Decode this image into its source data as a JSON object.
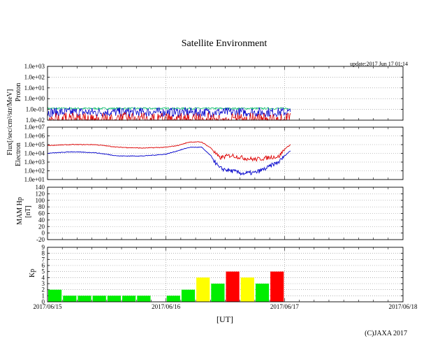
{
  "title": "Satellite Environment",
  "update": "update:2017 Jun 17 01:14",
  "copyright": "(C)JAXA 2017",
  "xaxis": {
    "label": "[UT]",
    "ticks": [
      "2017/06/15",
      "2017/06/16",
      "2017/06/17",
      "2017/06/18"
    ]
  },
  "ylabels": {
    "flux": "Flux[/sec/cm²/str/MeV]",
    "proton": "Proton",
    "electron": "Electron",
    "mam": "MAM Hp",
    "mam_unit": "[nT]",
    "kp": "Kp"
  },
  "colors": {
    "red": "#dd0000",
    "blue": "#0000cc",
    "green": "#00bb66",
    "kp_green": "#00ee00",
    "kp_yellow": "#ffff00",
    "kp_red": "#ff0000",
    "grid": "#888888"
  },
  "chart_data": [
    {
      "type": "line",
      "panel": "proton",
      "scale": "log",
      "ylim": [
        0.01,
        1000
      ],
      "yticks": [
        "1.0e-02",
        "1.0e-01",
        "1.0e+00",
        "1.0e+01",
        "1.0e+02",
        "1.0e+03"
      ],
      "xlim_days": [
        0,
        3
      ],
      "data_end_day": 2.05,
      "series": [
        {
          "color": "green",
          "values_range": [
            0.1,
            0.15
          ]
        },
        {
          "color": "blue",
          "values_range": [
            0.02,
            0.15
          ]
        },
        {
          "color": "red",
          "values_range": [
            0.01,
            0.05
          ]
        }
      ]
    },
    {
      "type": "line",
      "panel": "electron",
      "scale": "log",
      "ylim": [
        10,
        10000000
      ],
      "yticks": [
        "1.0e+01",
        "1.0e+02",
        "1.0e+03",
        "1.0e+04",
        "1.0e+05",
        "1.0e+06",
        "1.0e+07"
      ],
      "series": [
        {
          "color": "red",
          "x": [
            0,
            0.2,
            0.4,
            0.6,
            0.8,
            1.0,
            1.1,
            1.2,
            1.3,
            1.38,
            1.45,
            1.55,
            1.65,
            1.75,
            1.85,
            1.9,
            1.95,
            2.0,
            2.05
          ],
          "y": [
            80000,
            100000,
            100000,
            50000,
            40000,
            50000,
            80000,
            200000,
            200000,
            40000,
            3000,
            6000,
            3000,
            2000,
            3000,
            4000,
            4000,
            30000,
            100000
          ]
        },
        {
          "color": "blue",
          "x": [
            0,
            0.2,
            0.4,
            0.6,
            0.8,
            1.0,
            1.1,
            1.2,
            1.3,
            1.38,
            1.45,
            1.55,
            1.65,
            1.75,
            1.85,
            1.9,
            1.95,
            2.0,
            2.05
          ],
          "y": [
            10000,
            15000,
            12000,
            5000,
            5000,
            8000,
            20000,
            50000,
            50000,
            5000,
            200,
            100,
            50,
            60,
            200,
            500,
            1000,
            5000,
            20000
          ]
        }
      ]
    },
    {
      "type": "line",
      "panel": "mam",
      "ylim": [
        -20,
        140
      ],
      "yticks": [
        "-20",
        "0",
        "20",
        "40",
        "60",
        "80",
        "100",
        "120",
        "140"
      ],
      "series": []
    },
    {
      "type": "bar",
      "panel": "kp",
      "ylim": [
        0,
        9
      ],
      "yticks": [
        "0",
        "1",
        "2",
        "3",
        "4",
        "5",
        "6",
        "7",
        "8",
        "9"
      ],
      "bar_width_days": 0.125,
      "bars": [
        {
          "start": 0.0,
          "value": 2,
          "level": "kp_green"
        },
        {
          "start": 0.125,
          "value": 1,
          "level": "kp_green"
        },
        {
          "start": 0.25,
          "value": 1,
          "level": "kp_green"
        },
        {
          "start": 0.375,
          "value": 1,
          "level": "kp_green"
        },
        {
          "start": 0.5,
          "value": 1,
          "level": "kp_green"
        },
        {
          "start": 0.625,
          "value": 1,
          "level": "kp_green"
        },
        {
          "start": 0.75,
          "value": 1,
          "level": "kp_green"
        },
        {
          "start": 1.0,
          "value": 1,
          "level": "kp_green"
        },
        {
          "start": 1.125,
          "value": 2,
          "level": "kp_green"
        },
        {
          "start": 1.25,
          "value": 4,
          "level": "kp_yellow"
        },
        {
          "start": 1.375,
          "value": 3,
          "level": "kp_green"
        },
        {
          "start": 1.5,
          "value": 5,
          "level": "kp_red"
        },
        {
          "start": 1.625,
          "value": 4,
          "level": "kp_yellow"
        },
        {
          "start": 1.75,
          "value": 3,
          "level": "kp_green"
        },
        {
          "start": 1.875,
          "value": 5,
          "level": "kp_red"
        }
      ]
    }
  ]
}
